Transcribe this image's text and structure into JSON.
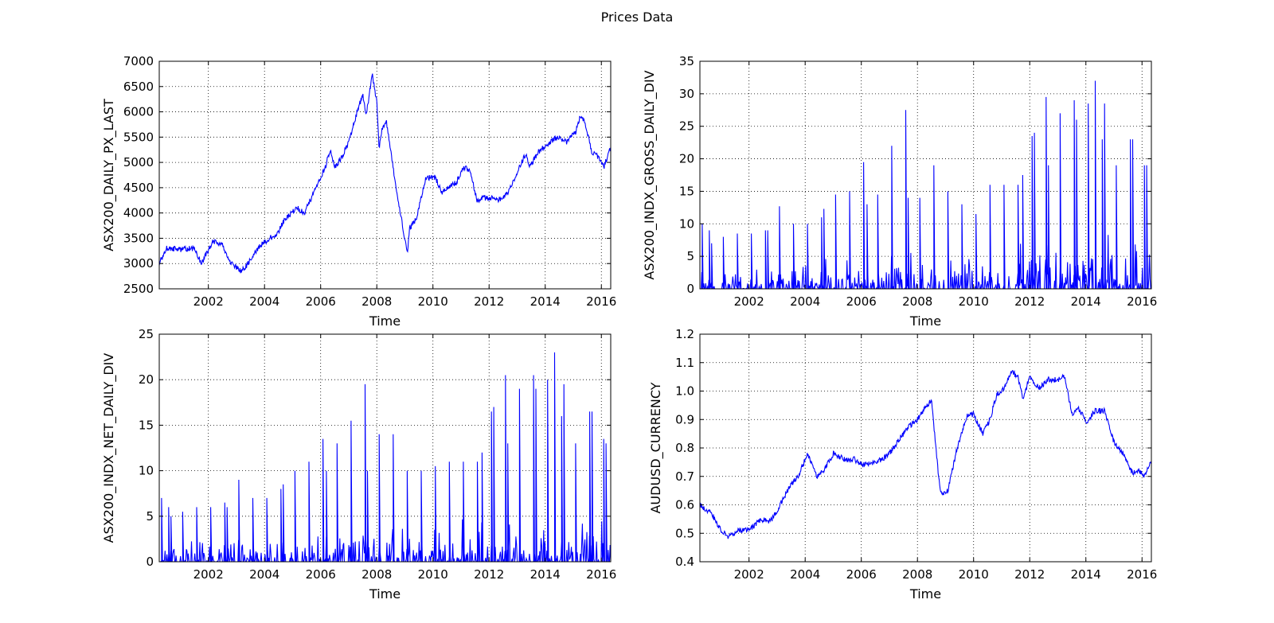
{
  "figure": {
    "title": "Prices Data"
  },
  "chart_data": [
    {
      "type": "line",
      "title": "",
      "xlabel": "Time",
      "ylabel": "ASX200_DAILY_PX_LAST",
      "x_range": [
        "2000-04-01",
        "2016-05-01"
      ],
      "x_ticks": [
        "2002",
        "2004",
        "2006",
        "2008",
        "2010",
        "2012",
        "2014",
        "2016"
      ],
      "ylim": [
        2500,
        7000
      ],
      "y_ticks": [
        "2500",
        "3000",
        "3500",
        "4000",
        "4500",
        "5000",
        "5500",
        "6000",
        "6500",
        "7000"
      ],
      "grid": true,
      "color": "#0000ff",
      "series": [
        {
          "x": [
            "2000-04-01",
            "2000-07-01",
            "2001-01-01",
            "2001-07-01",
            "2001-10-01",
            "2002-03-01",
            "2002-07-01",
            "2002-10-01",
            "2003-03-01",
            "2003-06-01",
            "2003-10-01",
            "2004-03-01",
            "2004-06-01",
            "2004-10-01",
            "2005-03-01",
            "2005-06-01",
            "2005-10-01",
            "2006-03-01",
            "2006-05-01",
            "2006-07-01",
            "2006-10-01",
            "2007-01-01",
            "2007-04-01",
            "2007-07-01",
            "2007-08-15",
            "2007-11-01",
            "2008-01-01",
            "2008-02-01",
            "2008-03-01",
            "2008-05-01",
            "2008-07-01",
            "2008-10-01",
            "2009-02-01",
            "2009-03-01",
            "2009-06-01",
            "2009-10-01",
            "2010-02-01",
            "2010-05-01",
            "2010-07-01",
            "2010-11-01",
            "2011-02-01",
            "2011-05-01",
            "2011-08-01",
            "2011-10-01",
            "2012-01-01",
            "2012-05-01",
            "2012-09-01",
            "2013-01-01",
            "2013-05-01",
            "2013-06-01",
            "2013-10-01",
            "2014-03-01",
            "2014-06-01",
            "2014-10-01",
            "2015-02-01",
            "2015-04-01",
            "2015-06-01",
            "2015-09-01",
            "2015-12-01",
            "2016-02-01",
            "2016-05-01"
          ],
          "y": [
            3000,
            3300,
            3280,
            3300,
            3000,
            3450,
            3350,
            3050,
            2850,
            3000,
            3300,
            3500,
            3550,
            3900,
            4100,
            4000,
            4400,
            4900,
            5250,
            4900,
            5100,
            5400,
            5900,
            6350,
            5900,
            6750,
            6200,
            5300,
            5600,
            5850,
            5200,
            4300,
            3200,
            3700,
            3900,
            4700,
            4700,
            4400,
            4500,
            4600,
            4900,
            4850,
            4200,
            4300,
            4300,
            4250,
            4400,
            4800,
            5200,
            4900,
            5200,
            5400,
            5500,
            5400,
            5600,
            5900,
            5800,
            5200,
            5100,
            4900,
            5300
          ]
        }
      ]
    },
    {
      "type": "line",
      "title": "",
      "xlabel": "Time",
      "ylabel": "ASX200_INDX_GROSS_DAILY_DIV",
      "x_range": [
        "2000-04-01",
        "2016-05-01"
      ],
      "x_ticks": [
        "2002",
        "2004",
        "2006",
        "2008",
        "2010",
        "2012",
        "2014",
        "2016"
      ],
      "ylim": [
        0,
        35
      ],
      "y_ticks": [
        "0",
        "5",
        "10",
        "15",
        "20",
        "25",
        "30",
        "35"
      ],
      "grid": true,
      "color": "#0000ff",
      "series": [
        {
          "x": [
            "2000-05-01",
            "2000-08-01",
            "2000-09-01",
            "2001-02-01",
            "2001-08-01",
            "2002-02-01",
            "2002-08-01",
            "2002-09-01",
            "2003-02-01",
            "2003-08-01",
            "2004-02-01",
            "2004-08-01",
            "2004-09-01",
            "2005-02-01",
            "2005-08-01",
            "2006-02-01",
            "2006-03-15",
            "2006-08-01",
            "2007-02-01",
            "2007-08-01",
            "2007-09-01",
            "2008-02-01",
            "2008-08-01",
            "2009-02-01",
            "2009-08-01",
            "2010-02-01",
            "2010-08-01",
            "2011-02-01",
            "2011-08-01",
            "2011-10-01",
            "2012-02-01",
            "2012-03-01",
            "2012-08-01",
            "2012-09-01",
            "2013-02-01",
            "2013-08-01",
            "2013-09-01",
            "2014-02-01",
            "2014-05-01",
            "2014-08-01",
            "2014-09-01",
            "2015-02-01",
            "2015-08-01",
            "2015-09-01",
            "2016-02-01",
            "2016-03-01"
          ],
          "y": [
            10,
            9,
            7,
            8,
            8.5,
            8.5,
            9,
            9,
            12.7,
            10,
            10,
            11,
            12.3,
            14.5,
            15,
            19.5,
            13,
            14.5,
            22,
            27.5,
            14,
            14,
            19,
            15,
            13,
            11.5,
            16,
            16,
            16,
            17.5,
            23.5,
            24,
            29.5,
            19,
            27,
            29,
            26,
            28.5,
            32,
            23,
            28.5,
            19,
            23,
            23,
            19,
            19
          ]
        }
      ]
    },
    {
      "type": "line",
      "title": "",
      "xlabel": "Time",
      "ylabel": "ASX200_INDX_NET_DAILY_DIV",
      "x_range": [
        "2000-04-01",
        "2016-05-01"
      ],
      "x_ticks": [
        "2002",
        "2004",
        "2006",
        "2008",
        "2010",
        "2012",
        "2014",
        "2016"
      ],
      "ylim": [
        0,
        25
      ],
      "y_ticks": [
        "0",
        "5",
        "10",
        "15",
        "20",
        "25"
      ],
      "grid": true,
      "color": "#0000ff",
      "series": [
        {
          "x": [
            "2000-05-01",
            "2000-08-01",
            "2000-09-01",
            "2001-02-01",
            "2001-08-01",
            "2002-02-01",
            "2002-08-01",
            "2002-09-01",
            "2003-02-01",
            "2003-08-01",
            "2004-02-01",
            "2004-08-01",
            "2004-09-01",
            "2005-02-01",
            "2005-08-01",
            "2006-02-01",
            "2006-03-15",
            "2006-08-01",
            "2007-02-01",
            "2007-08-01",
            "2007-09-01",
            "2008-02-01",
            "2008-08-01",
            "2009-02-01",
            "2009-08-01",
            "2010-02-01",
            "2010-08-01",
            "2011-02-01",
            "2011-08-01",
            "2011-10-01",
            "2012-02-01",
            "2012-03-01",
            "2012-08-01",
            "2012-09-01",
            "2013-02-01",
            "2013-08-01",
            "2013-09-01",
            "2014-02-01",
            "2014-05-01",
            "2014-08-01",
            "2014-09-01",
            "2015-02-01",
            "2015-08-01",
            "2015-09-01",
            "2016-02-01",
            "2016-03-01"
          ],
          "y": [
            7,
            6,
            5,
            5.5,
            6,
            6,
            6.5,
            6,
            9,
            7,
            7,
            8,
            8.5,
            10,
            11,
            13.5,
            10,
            13,
            15.5,
            19.5,
            10,
            14,
            14,
            10,
            10,
            10.5,
            11,
            11,
            11,
            12,
            16.5,
            17,
            20.5,
            13,
            19,
            20.5,
            19,
            20,
            23,
            16,
            19.5,
            13,
            16.5,
            16.5,
            13.5,
            13
          ]
        }
      ]
    },
    {
      "type": "line",
      "title": "",
      "xlabel": "Time",
      "ylabel": "AUDUSD_CURRENCY",
      "x_range": [
        "2000-04-01",
        "2016-05-01"
      ],
      "x_ticks": [
        "2002",
        "2004",
        "2006",
        "2008",
        "2010",
        "2012",
        "2014",
        "2016"
      ],
      "ylim": [
        0.4,
        1.2
      ],
      "y_ticks": [
        "0.4",
        "0.5",
        "0.6",
        "0.7",
        "0.8",
        "0.9",
        "1.0",
        "1.1",
        "1.2"
      ],
      "grid": true,
      "color": "#0000ff",
      "series": [
        {
          "x": [
            "2000-04-01",
            "2000-09-01",
            "2001-01-01",
            "2001-04-01",
            "2001-09-01",
            "2002-01-01",
            "2002-06-01",
            "2002-10-01",
            "2003-01-01",
            "2003-06-01",
            "2003-10-01",
            "2004-02-01",
            "2004-06-01",
            "2004-09-01",
            "2005-01-01",
            "2005-06-01",
            "2005-10-01",
            "2006-02-01",
            "2006-06-01",
            "2006-10-01",
            "2007-02-01",
            "2007-06-01",
            "2007-10-01",
            "2008-01-01",
            "2008-04-01",
            "2008-07-01",
            "2008-10-01",
            "2008-11-01",
            "2009-02-01",
            "2009-06-01",
            "2009-10-01",
            "2010-01-01",
            "2010-05-01",
            "2010-08-01",
            "2010-11-01",
            "2011-02-01",
            "2011-05-01",
            "2011-08-01",
            "2011-10-01",
            "2012-01-01",
            "2012-05-01",
            "2012-09-01",
            "2013-01-01",
            "2013-04-01",
            "2013-07-01",
            "2013-10-01",
            "2014-01-01",
            "2014-05-01",
            "2014-09-01",
            "2015-01-01",
            "2015-05-01",
            "2015-09-01",
            "2015-12-01",
            "2016-02-01",
            "2016-05-01"
          ],
          "y": [
            0.6,
            0.57,
            0.51,
            0.49,
            0.51,
            0.51,
            0.55,
            0.54,
            0.58,
            0.66,
            0.7,
            0.78,
            0.7,
            0.72,
            0.78,
            0.76,
            0.76,
            0.74,
            0.75,
            0.76,
            0.79,
            0.84,
            0.88,
            0.9,
            0.94,
            0.97,
            0.7,
            0.64,
            0.65,
            0.8,
            0.91,
            0.92,
            0.85,
            0.9,
            0.99,
            1.01,
            1.07,
            1.05,
            0.97,
            1.05,
            1.01,
            1.04,
            1.04,
            1.05,
            0.92,
            0.94,
            0.89,
            0.93,
            0.93,
            0.82,
            0.78,
            0.71,
            0.72,
            0.7,
            0.76
          ]
        }
      ]
    }
  ]
}
